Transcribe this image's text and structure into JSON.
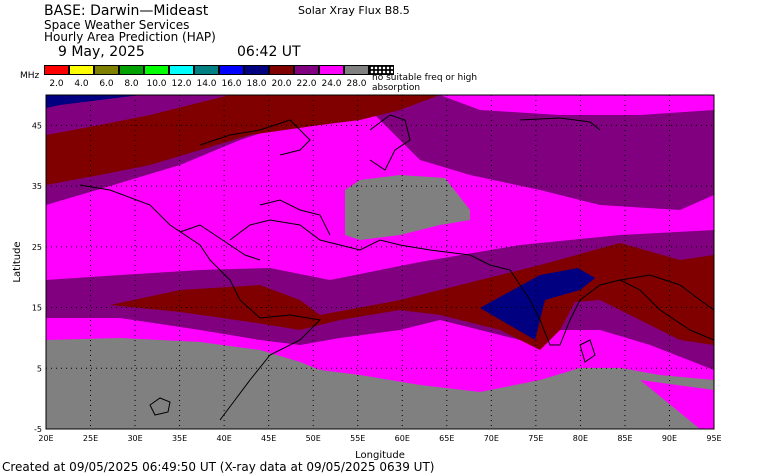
{
  "header": {
    "title": "BASE: Darwin—Mideast",
    "line1": "Space Weather Services",
    "line2": "Hourly Area Prediction (HAP)",
    "date": "9 May, 2025",
    "time": "06:42 UT",
    "flux": "Solar Xray Flux B8.5"
  },
  "legend": {
    "unit": "MHz",
    "items": [
      {
        "label": "2.0",
        "color": "#ff0000"
      },
      {
        "label": "4.0",
        "color": "#ffff00"
      },
      {
        "label": "6.0",
        "color": "#808000"
      },
      {
        "label": "8.0",
        "color": "#00a000"
      },
      {
        "label": "10.0",
        "color": "#00ff00"
      },
      {
        "label": "12.0",
        "color": "#00ffff"
      },
      {
        "label": "14.0",
        "color": "#008080"
      },
      {
        "label": "16.0",
        "color": "#0000ff"
      },
      {
        "label": "18.0",
        "color": "#000080"
      },
      {
        "label": "20.0",
        "color": "#800000"
      },
      {
        "label": "22.0",
        "color": "#800080"
      },
      {
        "label": "24.0",
        "color": "#ff00ff"
      },
      {
        "label": "28.0",
        "color": "#808080"
      }
    ],
    "no_suitable": "no suitable freq or high absorption"
  },
  "axes": {
    "ylabel": "Latitude",
    "xlabel": "Longitude",
    "lat_ticks": [
      "45",
      "35",
      "25",
      "15",
      "5",
      "-5"
    ],
    "lon_ticks": [
      "20E",
      "25E",
      "30E",
      "35E",
      "40E",
      "45E",
      "50E",
      "55E",
      "60E",
      "65E",
      "70E",
      "75E",
      "80E",
      "85E",
      "90E",
      "95E"
    ],
    "lon_range": [
      20,
      95
    ],
    "lat_range": [
      -5,
      50
    ]
  },
  "footer": "Created at 09/05/2025 06:49:50 UT (X-ray data at 09/05/2025 0639 UT)"
}
